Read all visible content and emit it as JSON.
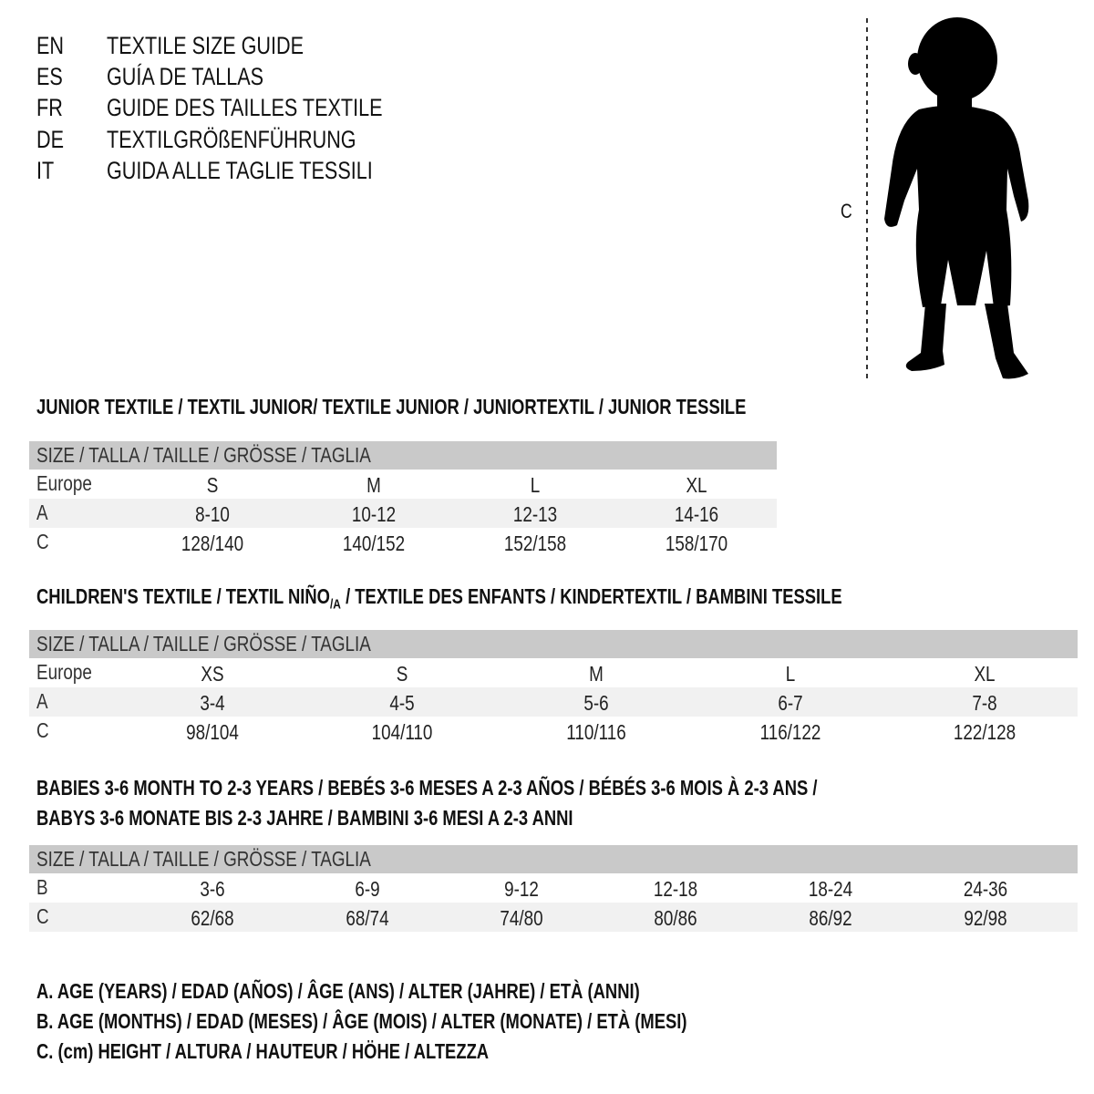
{
  "titles": [
    {
      "code": "EN",
      "text": "TEXTILE SIZE GUIDE"
    },
    {
      "code": "ES",
      "text": "GUÍA DE TALLAS"
    },
    {
      "code": "FR",
      "text": "GUIDE DES TAILLES TEXTILE"
    },
    {
      "code": "DE",
      "text": "TEXTILGRÖßENFÜHRUNG"
    },
    {
      "code": "IT",
      "text": "GUIDA ALLE TAGLIE TESSILI"
    }
  ],
  "figure": {
    "measure_label": "C"
  },
  "junior": {
    "heading": "JUNIOR TEXTILE / TEXTIL JUNIOR/ TEXTILE JUNIOR / JUNIORTEXTIL / JUNIOR TESSILE",
    "header": "SIZE / TALLA / TAILLE / GRÖSSE / TAGLIA",
    "rows": [
      {
        "label": "Europe",
        "values": [
          "S",
          "M",
          "L",
          "XL"
        ]
      },
      {
        "label": "A",
        "values": [
          "8-10",
          "10-12",
          "12-13",
          "14-16"
        ]
      },
      {
        "label": "C",
        "values": [
          "128/140",
          "140/152",
          "152/158",
          "158/170"
        ]
      }
    ]
  },
  "children": {
    "heading_pre": "CHILDREN'S TEXTILE / TEXTIL NIÑO",
    "heading_sub": "/A",
    "heading_post": " / TEXTILE DES ENFANTS / KINDERTEXTIL / BAMBINI TESSILE",
    "header": "SIZE / TALLA / TAILLE / GRÖSSE / TAGLIA",
    "rows": [
      {
        "label": "Europe",
        "values": [
          "XS",
          "S",
          "M",
          "L",
          "XL"
        ]
      },
      {
        "label": "A",
        "values": [
          "3-4",
          "4-5",
          "5-6",
          "6-7",
          "7-8"
        ]
      },
      {
        "label": "C",
        "values": [
          "98/104",
          "104/110",
          "110/116",
          "116/122",
          "122/128"
        ]
      }
    ]
  },
  "babies": {
    "heading_line1": "BABIES 3-6 MONTH TO 2-3 YEARS / BEBÉS 3-6 MESES A 2-3 AÑOS / BÉBÉS 3-6 MOIS À 2-3 ANS /",
    "heading_line2": "BABYS 3-6 MONATE BIS 2-3 JAHRE / BAMBINI 3-6 MESI A 2-3 ANNI",
    "header": "SIZE / TALLA / TAILLE / GRÖSSE / TAGLIA",
    "rows": [
      {
        "label": "B",
        "values": [
          "3-6",
          "6-9",
          "9-12",
          "12-18",
          "18-24",
          "24-36"
        ]
      },
      {
        "label": "C",
        "values": [
          "62/68",
          "68/74",
          "74/80",
          "80/86",
          "86/92",
          "92/98"
        ]
      }
    ]
  },
  "legend": [
    "A. AGE (YEARS) / EDAD (AÑOS) / ÂGE (ANS) / ALTER (JAHRE) / ETÀ (ANNI)",
    "B. AGE (MONTHS) / EDAD (MESES) / ÂGE (MOIS) / ALTER (MONATE) / ETÀ (MESI)",
    "C. (cm) HEIGHT / ALTURA / HAUTEUR / HÖHE / ALTEZZA"
  ],
  "colors": {
    "header_bg": "#c9c9c9",
    "alt_row_bg": "#f1f1f1",
    "text": "#111111"
  }
}
